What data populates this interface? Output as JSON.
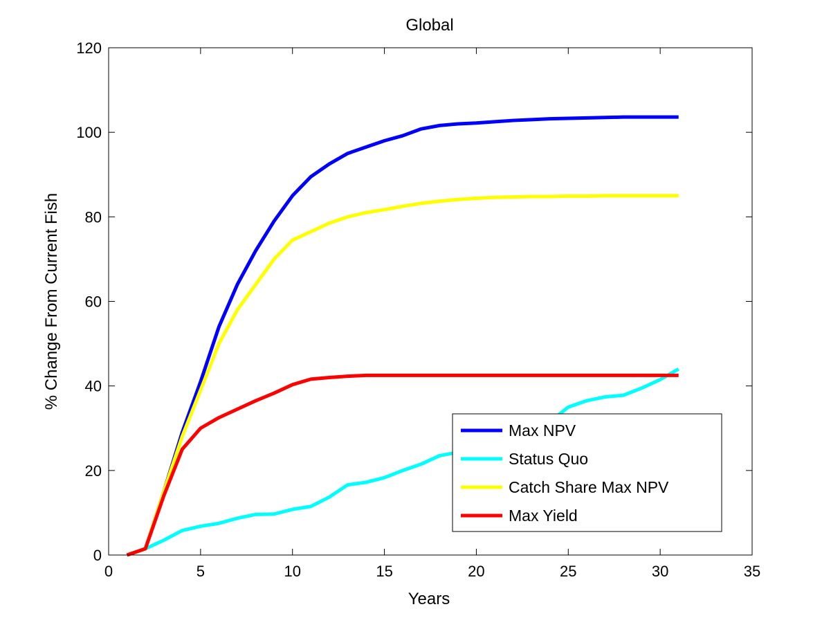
{
  "chart_data": {
    "type": "line",
    "title": "Global",
    "xlabel": "Years",
    "ylabel": "% Change From Current Fish",
    "xlim": [
      0,
      35
    ],
    "ylim": [
      0,
      120
    ],
    "xticks": [
      0,
      5,
      10,
      15,
      20,
      25,
      30,
      35
    ],
    "yticks": [
      0,
      20,
      40,
      60,
      80,
      100,
      120
    ],
    "grid": false,
    "legend_position": "bottom-right",
    "x": [
      1,
      2,
      3,
      4,
      5,
      6,
      7,
      8,
      9,
      10,
      11,
      12,
      13,
      14,
      15,
      16,
      17,
      18,
      19,
      20,
      21,
      22,
      23,
      24,
      25,
      26,
      27,
      28,
      29,
      30,
      31
    ],
    "series": [
      {
        "name": "Max NPV",
        "color": "#0000ff",
        "values": [
          0,
          1.5,
          15,
          29,
          41,
          54,
          64,
          72,
          79,
          85,
          89.5,
          92.5,
          95,
          96.5,
          98,
          99.2,
          100.8,
          101.6,
          102,
          102.2,
          102.5,
          102.8,
          103,
          103.2,
          103.3,
          103.4,
          103.5,
          103.6,
          103.6,
          103.6,
          103.6
        ]
      },
      {
        "name": "Status Quo",
        "color": "#00ffff",
        "values": [
          0,
          1.5,
          3.5,
          5.8,
          6.8,
          7.5,
          8.7,
          9.6,
          9.7,
          10.8,
          11.5,
          13.7,
          16.6,
          17.2,
          18.3,
          20,
          21.5,
          23.5,
          24.3,
          25.2,
          26.5,
          28,
          29.8,
          31.5,
          35,
          36.5,
          37.4,
          37.8,
          39.5,
          41.5,
          44
        ]
      },
      {
        "name": "Catch Share Max NPV",
        "color": "#ffff00",
        "values": [
          0,
          1.5,
          15,
          28,
          39,
          50,
          58,
          64,
          70,
          74.5,
          76.5,
          78.5,
          80,
          81,
          81.7,
          82.5,
          83.2,
          83.7,
          84.1,
          84.4,
          84.6,
          84.7,
          84.8,
          84.8,
          84.9,
          84.9,
          85,
          85,
          85,
          85,
          85
        ]
      },
      {
        "name": "Max Yield",
        "color": "#ff0000",
        "values": [
          0,
          1.5,
          14,
          25,
          30,
          32.5,
          34.5,
          36.5,
          38.3,
          40.3,
          41.6,
          42,
          42.3,
          42.5,
          42.5,
          42.5,
          42.5,
          42.5,
          42.5,
          42.5,
          42.5,
          42.5,
          42.5,
          42.5,
          42.5,
          42.5,
          42.5,
          42.5,
          42.5,
          42.5,
          42.5
        ]
      }
    ]
  }
}
